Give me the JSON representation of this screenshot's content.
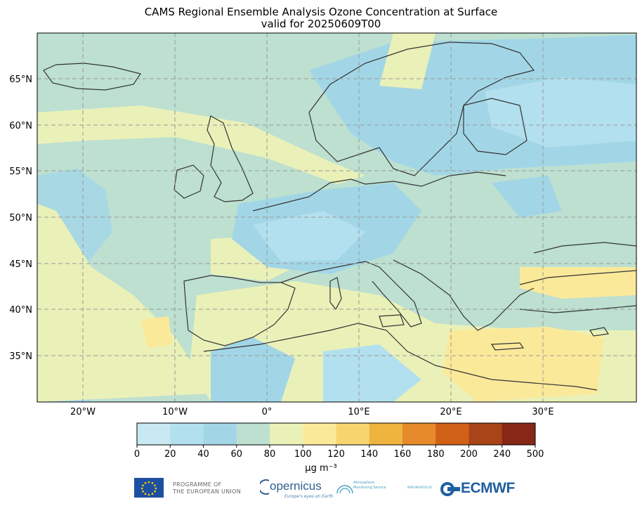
{
  "title": {
    "line1": "CAMS Regional Ensemble Analysis Ozone Concentration at Surface",
    "line2": "valid for 20250609T00"
  },
  "map": {
    "lon_ticks": [
      "20°W",
      "10°W",
      "0°",
      "10°E",
      "20°E",
      "30°E"
    ],
    "lat_ticks": [
      "65°N",
      "60°N",
      "55°N",
      "50°N",
      "45°N",
      "40°N",
      "35°N"
    ],
    "gridlines": true
  },
  "colorbar": {
    "ticks": [
      "0",
      "20",
      "40",
      "60",
      "80",
      "100",
      "120",
      "140",
      "160",
      "180",
      "200",
      "240",
      "500"
    ],
    "colors": [
      "#c9e9f2",
      "#b3e0ee",
      "#a2d6e6",
      "#bde0d0",
      "#eaf1b8",
      "#fbe99a",
      "#f6d56f",
      "#efb43e",
      "#e68a2c",
      "#d26118",
      "#a94318",
      "#862718"
    ],
    "units": "μg m⁻³"
  },
  "logos": {
    "eu": "PROGRAMME OF THE EUROPEAN UNION",
    "eu_line1": "PROGRAMME OF",
    "eu_line2": "THE EUROPEAN UNION",
    "copernicus": "opernicus",
    "copernicus_tagline": "Europe's eyes on Earth",
    "cams_line1": "Atmosphere",
    "cams_line2": "Monitoring Service",
    "implemented_by": "IMPLEMENTED BY",
    "ecmwf": "ECMWF"
  }
}
